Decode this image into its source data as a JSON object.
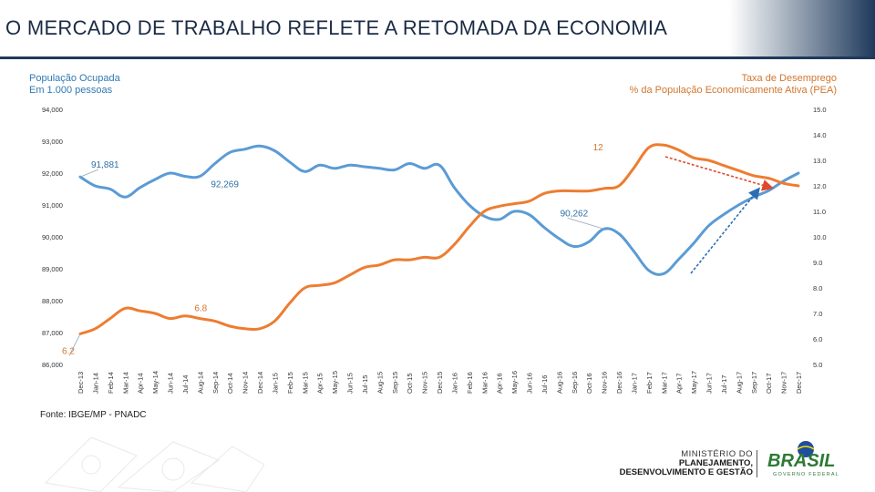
{
  "header": {
    "title": "O MERCADO DE TRABALHO REFLETE A RETOMADA DA ECONOMIA"
  },
  "left_axis_label": {
    "line1": "População Ocupada",
    "line2": "Em 1.000 pessoas"
  },
  "right_axis_label": {
    "line1": "Taxa de Desemprego",
    "line2": "% da População Economicamente Ativa (PEA)"
  },
  "source": "Fonte: IBGE/MP - PNADC",
  "logos": {
    "ministry_line1": "MINISTÉRIO DO",
    "ministry_line2": "PLANEJAMENTO,",
    "ministry_line3": "DESENVOLVIMENTO E GESTÃO",
    "brasil_text": "BRASIL",
    "brasil_sub": "GOVERNO FEDERAL"
  },
  "colors": {
    "employed": "#5b9bd5",
    "unemployment": "#ed7d31",
    "trend_arrow_down": "#e0492b",
    "trend_arrow_up": "#2e6db4",
    "employed_label": "#2f7ab4",
    "unemployment_label": "#d2762e"
  },
  "chart_data": {
    "type": "line",
    "categories": [
      "Dec-13",
      "Jan-14",
      "Feb-14",
      "Mar-14",
      "Apr-14",
      "May-14",
      "Jun-14",
      "Jul-14",
      "Aug-14",
      "Sep-14",
      "Oct-14",
      "Nov-14",
      "Dec-14",
      "Jan-15",
      "Feb-15",
      "Mar-15",
      "Apr-15",
      "May-15",
      "Jun-15",
      "Jul-15",
      "Aug-15",
      "Sep-15",
      "Oct-15",
      "Nov-15",
      "Dec-15",
      "Jan-16",
      "Feb-16",
      "Mar-16",
      "Apr-16",
      "May-16",
      "Jun-16",
      "Jul-16",
      "Aug-16",
      "Sep-16",
      "Oct-16",
      "Nov-16",
      "Dec-16",
      "Jan-17",
      "Feb-17",
      "Mar-17",
      "Apr-17",
      "May-17",
      "Jun-17",
      "Jul-17",
      "Aug-17",
      "Sep-17",
      "Oct-17",
      "Nov-17",
      "Dec-17"
    ],
    "series": [
      {
        "name": "População Ocupada",
        "axis": "left",
        "values": [
          91881,
          91600,
          91500,
          91250,
          91550,
          91800,
          92000,
          91900,
          91900,
          92300,
          92650,
          92750,
          92850,
          92700,
          92350,
          92050,
          92250,
          92150,
          92250,
          92200,
          92150,
          92100,
          92300,
          92150,
          92250,
          91550,
          91000,
          90650,
          90550,
          90800,
          90700,
          90300,
          89950,
          89700,
          89850,
          90250,
          90100,
          89550,
          88950,
          88850,
          89300,
          89800,
          90350,
          90700,
          91000,
          91250,
          91450,
          91750,
          92000
        ]
      },
      {
        "name": "Taxa de Desemprego",
        "axis": "right",
        "values": [
          6.2,
          6.4,
          6.8,
          7.2,
          7.1,
          7.0,
          6.8,
          6.9,
          6.8,
          6.7,
          6.5,
          6.4,
          6.4,
          6.7,
          7.4,
          8.0,
          8.1,
          8.2,
          8.5,
          8.8,
          8.9,
          9.1,
          9.1,
          9.2,
          9.2,
          9.7,
          10.4,
          11.0,
          11.2,
          11.3,
          11.4,
          11.7,
          11.8,
          11.8,
          11.8,
          11.9,
          12.0,
          12.7,
          13.5,
          13.6,
          13.4,
          13.1,
          13.0,
          12.8,
          12.6,
          12.4,
          12.3,
          12.1,
          12.0
        ]
      }
    ],
    "left_axis": {
      "min": 86000,
      "max": 94000,
      "ticks": [
        "94,000",
        "93,000",
        "92,000",
        "91,000",
        "90,000",
        "89,000",
        "88,000",
        "87,000",
        "86,000"
      ]
    },
    "right_axis": {
      "min": 5.0,
      "max": 15.0,
      "ticks": [
        "15.0",
        "14.0",
        "13.0",
        "12.0",
        "11.0",
        "10.0",
        "9.0",
        "8.0",
        "7.0",
        "6.0",
        "5.0"
      ]
    },
    "annotations": [
      {
        "text": "91,881",
        "series": "População Ocupada"
      },
      {
        "text": "92,269",
        "series": "População Ocupada"
      },
      {
        "text": "90,262",
        "series": "População Ocupada"
      },
      {
        "text": "6.2",
        "series": "Taxa de Desemprego"
      },
      {
        "text": "6.8",
        "series": "Taxa de Desemprego"
      },
      {
        "text": "12",
        "series": "Taxa de Desemprego"
      }
    ],
    "trend_arrows": [
      {
        "direction": "down",
        "series": "Taxa de Desemprego"
      },
      {
        "direction": "up",
        "series": "População Ocupada"
      }
    ]
  }
}
